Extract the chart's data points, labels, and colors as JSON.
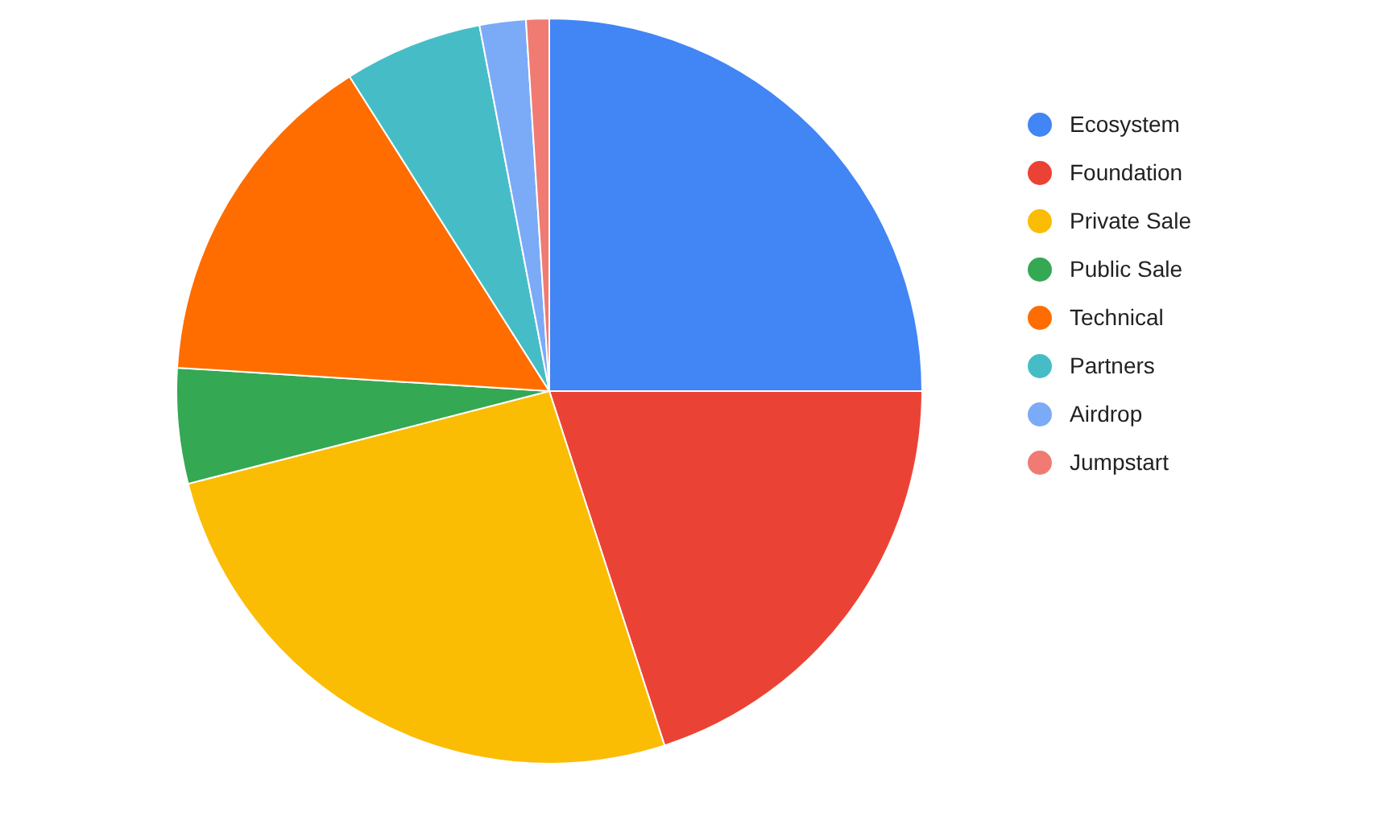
{
  "chart_data": {
    "type": "pie",
    "categories": [
      "Ecosystem",
      "Foundation",
      "Private Sale",
      "Public Sale",
      "Technical",
      "Partners",
      "Airdrop",
      "Jumpstart"
    ],
    "values": [
      25,
      20,
      26,
      5,
      15,
      6,
      2,
      1
    ],
    "colors": [
      "#4285f4",
      "#ea4335",
      "#fbbc04",
      "#34a853",
      "#ff6d01",
      "#46bdc6",
      "#7baaf7",
      "#f07b72"
    ],
    "legend": "right"
  }
}
